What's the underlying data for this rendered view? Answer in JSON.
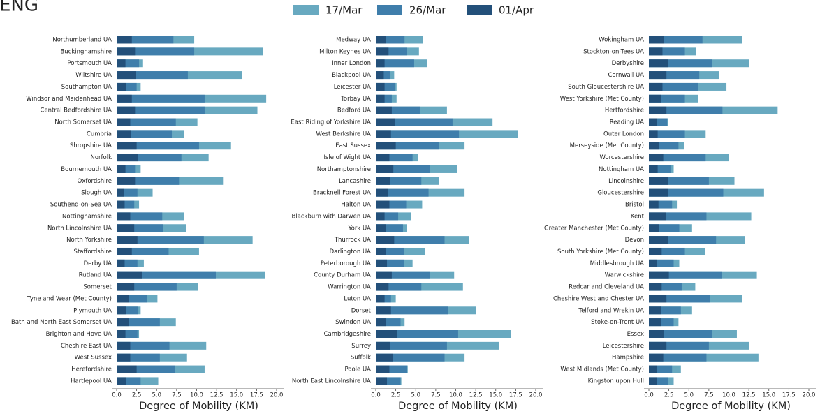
{
  "chart_data": [
    {
      "type": "bar",
      "orientation": "horizontal",
      "title": "ENG",
      "xlabel": "Degree of Mobility (KM)",
      "xlim": [
        0,
        20
      ],
      "xticks": [
        {
          "value": 0,
          "label": "0.0"
        },
        {
          "value": 2.5,
          "label": "2.5"
        },
        {
          "value": 5,
          "label": "5.0"
        },
        {
          "value": 7.5,
          "label": "7.5"
        },
        {
          "value": 10,
          "label": "10.0"
        },
        {
          "value": 12.5,
          "label": "12.5"
        },
        {
          "value": 15,
          "label": "15.0"
        },
        {
          "value": 17.5,
          "label": "17.5"
        },
        {
          "value": 20,
          "label": "20.0"
        }
      ],
      "categories": [
        "Northumberland UA",
        "Buckinghamshire",
        "Portsmouth UA",
        "Wiltshire UA",
        "Southampton UA",
        "Windsor and Maidenhead UA",
        "Central Bedfordshire UA",
        "North Somerset UA",
        "Cumbria",
        "Shropshire UA",
        "Norfolk",
        "Bournemouth UA",
        "Oxfordshire",
        "Slough UA",
        "Southend-on-Sea UA",
        "Nottinghamshire",
        "North Lincolnshire UA",
        "North Yorkshire",
        "Staffordshire",
        "Derby UA",
        "Rutland UA",
        "Somerset",
        "Tyne and Wear (Met County)",
        "Plymouth UA",
        "Bath and North East Somerset UA",
        "Brighton and Hove UA",
        "Cheshire East UA",
        "West Sussex",
        "Herefordshire",
        "Hartlepool UA"
      ],
      "series": [
        {
          "name": "17/Mar",
          "color": "#68a9c0",
          "values": [
            9.7,
            18.3,
            3.3,
            15.7,
            3.0,
            18.7,
            17.6,
            10.1,
            8.4,
            14.3,
            11.5,
            3.0,
            13.3,
            4.5,
            2.8,
            8.4,
            8.7,
            17.0,
            10.3,
            3.4,
            18.6,
            10.2,
            5.1,
            3.0,
            7.4,
            2.8,
            11.2,
            8.8,
            11.0,
            5.2
          ]
        },
        {
          "name": "26/Mar",
          "color": "#3f7eab",
          "values": [
            7.1,
            9.7,
            2.8,
            8.9,
            2.5,
            11.0,
            11.0,
            7.4,
            6.9,
            10.3,
            8.1,
            2.3,
            7.8,
            2.6,
            2.2,
            5.7,
            5.8,
            10.9,
            6.5,
            2.6,
            12.4,
            7.5,
            3.8,
            2.7,
            5.4,
            2.6,
            6.6,
            5.4,
            7.3,
            3.0
          ]
        },
        {
          "name": "01/Apr",
          "color": "#23507a",
          "values": [
            1.9,
            2.3,
            1.1,
            2.4,
            1.2,
            1.9,
            2.3,
            1.7,
            1.8,
            2.5,
            2.7,
            1.1,
            2.3,
            0.9,
            1.0,
            1.7,
            2.2,
            2.6,
            1.9,
            1.0,
            3.2,
            2.2,
            1.5,
            1.2,
            1.5,
            1.1,
            1.7,
            1.7,
            2.5,
            1.2
          ]
        }
      ]
    },
    {
      "type": "bar",
      "orientation": "horizontal",
      "xlabel": "Degree of Mobility (KM)",
      "xlim": [
        0,
        20
      ],
      "xticks": [
        {
          "value": 0,
          "label": "0.0"
        },
        {
          "value": 2.5,
          "label": "2.5"
        },
        {
          "value": 5,
          "label": "5.0"
        },
        {
          "value": 7.5,
          "label": "7.5"
        },
        {
          "value": 10,
          "label": "10.0"
        },
        {
          "value": 12.5,
          "label": "12.5"
        },
        {
          "value": 15,
          "label": "15.0"
        },
        {
          "value": 17.5,
          "label": "17.5"
        },
        {
          "value": 20,
          "label": "20.0"
        }
      ],
      "categories": [
        "Medway UA",
        "Milton Keynes UA",
        "Inner London",
        "Blackpool UA",
        "Leicester UA",
        "Torbay UA",
        "Bedford UA",
        "East Riding of Yorkshire UA",
        "West Berkshire UA",
        "East Sussex",
        "Isle of Wight UA",
        "Northamptonshire",
        "Lancashire",
        "Bracknell Forest UA",
        "Halton UA",
        "Blackburn with Darwen UA",
        "York UA",
        "Thurrock UA",
        "Darlington UA",
        "Peterborough UA",
        "County Durham UA",
        "Warrington UA",
        "Luton UA",
        "Dorset",
        "Swindon UA",
        "Cambridgeshire",
        "Surrey",
        "Suffolk",
        "Poole UA",
        "North East Lincolnshire UA"
      ],
      "series": [
        {
          "name": "17/Mar",
          "color": "#68a9c0",
          "values": [
            5.9,
            5.4,
            6.4,
            2.3,
            2.6,
            2.6,
            8.9,
            14.6,
            17.8,
            11.1,
            5.3,
            10.2,
            7.9,
            11.1,
            5.8,
            4.4,
            3.9,
            11.7,
            6.2,
            4.6,
            9.8,
            10.9,
            2.5,
            12.5,
            3.6,
            16.9,
            15.4,
            11.1,
            4.0,
            3.2
          ]
        },
        {
          "name": "26/Mar",
          "color": "#3f7eab",
          "values": [
            3.6,
            3.9,
            4.8,
            1.8,
            2.4,
            2.0,
            5.5,
            9.6,
            10.4,
            7.9,
            4.6,
            6.8,
            5.7,
            6.6,
            3.8,
            2.8,
            3.4,
            8.6,
            3.5,
            3.5,
            6.8,
            5.7,
            1.9,
            9.0,
            3.1,
            10.3,
            8.9,
            8.6,
            3.9,
            3.1
          ]
        },
        {
          "name": "01/Apr",
          "color": "#23507a",
          "values": [
            1.3,
            1.6,
            1.1,
            1.0,
            1.1,
            1.1,
            2.0,
            2.4,
            1.9,
            2.5,
            1.7,
            2.2,
            1.8,
            1.5,
            1.7,
            1.1,
            1.3,
            2.3,
            1.3,
            1.4,
            2.0,
            1.6,
            1.1,
            1.9,
            1.3,
            2.7,
            1.8,
            2.1,
            1.7,
            1.4
          ]
        }
      ]
    },
    {
      "type": "bar",
      "orientation": "horizontal",
      "xlabel": "Degree of Mobility (KM)",
      "xlim": [
        0,
        20
      ],
      "xticks": [
        {
          "value": 0,
          "label": "0.0"
        },
        {
          "value": 2.5,
          "label": "2.5"
        },
        {
          "value": 5,
          "label": "5.0"
        },
        {
          "value": 7.5,
          "label": "7.5"
        },
        {
          "value": 10,
          "label": "10.0"
        },
        {
          "value": 12.5,
          "label": "12.5"
        },
        {
          "value": 15,
          "label": "15.0"
        },
        {
          "value": 17.5,
          "label": "17.5"
        },
        {
          "value": 20,
          "label": "20.0"
        }
      ],
      "categories": [
        "Wokingham UA",
        "Stockton-on-Tees UA",
        "Derbyshire",
        "Cornwall UA",
        "South Gloucestershire UA",
        "West Yorkshire (Met County)",
        "Hertfordshire",
        "Reading UA",
        "Outer London",
        "Merseyside (Met County)",
        "Worcestershire",
        "Nottingham UA",
        "Lincolnshire",
        "Gloucestershire",
        "Bristol",
        "Kent",
        "Greater Manchester (Met County)",
        "Devon",
        "South Yorkshire (Met County)",
        "Middlesbrough UA",
        "Warwickshire",
        "Redcar and Cleveland UA",
        "Cheshire West and Chester UA",
        "Telford and Wrekin UA",
        "Stoke-on-Trent UA",
        "Essex",
        "Leicestershire",
        "Hampshire",
        "West Midlands (Met County)",
        "Kingston upon Hull"
      ],
      "series": [
        {
          "name": "17/Mar",
          "color": "#68a9c0",
          "values": [
            11.7,
            5.9,
            12.5,
            8.8,
            9.7,
            6.2,
            16.1,
            2.4,
            7.1,
            4.4,
            10.0,
            3.1,
            10.7,
            14.4,
            3.5,
            12.8,
            5.4,
            12.0,
            7.0,
            3.8,
            13.5,
            5.8,
            11.7,
            5.4,
            3.7,
            11.0,
            12.5,
            13.7,
            4.0,
            3.1
          ]
        },
        {
          "name": "26/Mar",
          "color": "#3f7eab",
          "values": [
            6.7,
            4.5,
            7.9,
            6.3,
            6.2,
            4.5,
            9.2,
            2.3,
            4.5,
            3.7,
            7.1,
            2.7,
            7.5,
            9.3,
            2.9,
            7.2,
            3.8,
            8.4,
            4.5,
            3.1,
            9.1,
            4.1,
            7.6,
            4.0,
            3.1,
            7.9,
            7.5,
            7.2,
            2.9,
            2.4
          ]
        },
        {
          "name": "01/Apr",
          "color": "#23507a",
          "values": [
            1.9,
            1.7,
            2.4,
            2.2,
            1.7,
            1.5,
            2.2,
            1.0,
            1.1,
            1.3,
            1.8,
            1.1,
            2.4,
            2.4,
            1.2,
            2.1,
            1.3,
            2.4,
            1.6,
            1.0,
            2.5,
            1.6,
            2.2,
            1.5,
            1.5,
            1.9,
            2.2,
            1.8,
            1.0,
            1.0
          ]
        }
      ]
    }
  ]
}
